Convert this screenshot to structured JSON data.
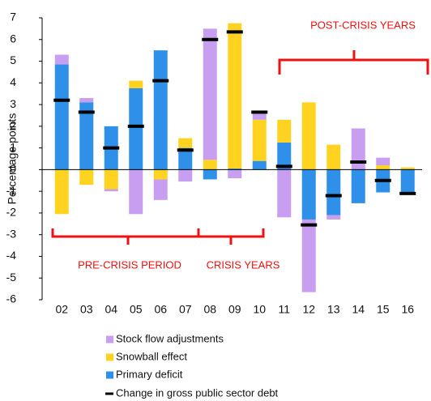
{
  "chart_data": {
    "type": "bar",
    "stacked": true,
    "y_label": "Percentage points",
    "categories": [
      "02",
      "03",
      "04",
      "05",
      "06",
      "07",
      "08",
      "09",
      "10",
      "11",
      "12",
      "13",
      "14",
      "15",
      "16"
    ],
    "series": [
      {
        "name": "Stock flow adjustments",
        "color": "#c89ff0",
        "values": [
          0.45,
          0.2,
          -0.1,
          -2.05,
          -0.95,
          -0.55,
          6.05,
          -0.4,
          0.3,
          -2.2,
          -3.35,
          -0.2,
          1.9,
          0.35,
          0
        ]
      },
      {
        "name": "Snowball effect",
        "color": "#ffd320",
        "values": [
          -2.05,
          -0.7,
          -0.9,
          0.35,
          -0.45,
          0.45,
          0.45,
          6.7,
          1.9,
          1.05,
          3.1,
          1.15,
          0,
          0.2,
          0.1
        ]
      },
      {
        "name": "Primary deficit",
        "color": "#2e90e8",
        "values": [
          4.85,
          3.1,
          2.0,
          3.75,
          5.5,
          1.0,
          -0.45,
          0.05,
          0.4,
          1.25,
          -2.3,
          -2.1,
          -1.55,
          -1.05,
          -1.05
        ]
      },
      {
        "name": "Change in gross public sector debt",
        "color": "#000000",
        "kind": "marker",
        "values": [
          3.2,
          2.65,
          1.0,
          2.0,
          4.1,
          0.9,
          6.0,
          6.35,
          2.65,
          0.15,
          -2.55,
          -1.2,
          0.35,
          -0.5,
          -1.1
        ]
      }
    ],
    "ylim": [
      -6,
      7
    ],
    "yticks": [
      -6,
      -5,
      -4,
      -3,
      -2,
      -1,
      0,
      1,
      2,
      3,
      4,
      5,
      6,
      7
    ],
    "annotations": [
      "PRE-CRISIS PERIOD",
      "CRISIS YEARS",
      "POST-CRISIS YEARS"
    ],
    "annotation_color": "#ee1111"
  }
}
